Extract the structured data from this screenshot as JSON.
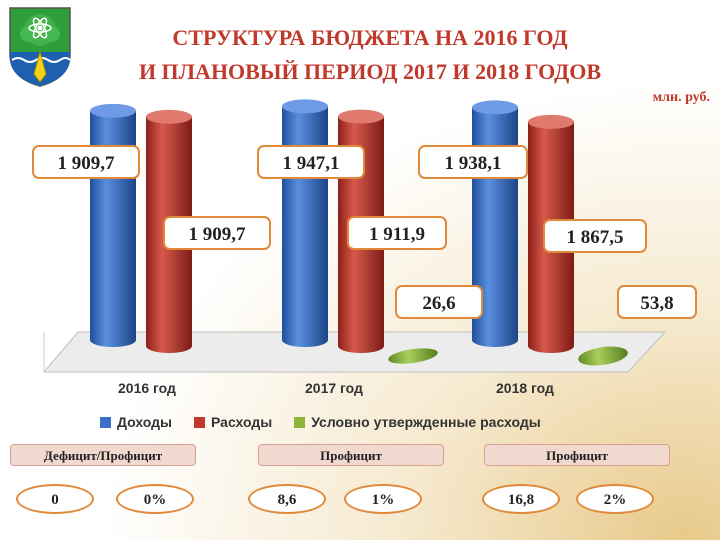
{
  "title": {
    "line1": "СТРУКТУРА БЮДЖЕТА НА 2016 ГОД",
    "line2": "И ПЛАНОВЫЙ ПЕРИОД 2017 И 2018 ГОДОВ"
  },
  "units": "млн. руб.",
  "chart_data": {
    "type": "bar",
    "categories": [
      "2016 год",
      "2017 год",
      "2018 год"
    ],
    "series": [
      {
        "name": "Доходы",
        "color": "#3b6fc4",
        "values": [
          1909.7,
          1947.1,
          1938.1
        ],
        "labels": [
          "1 909,7",
          "1 947,1",
          "1 938,1"
        ]
      },
      {
        "name": "Расходы",
        "color": "#c0392b",
        "values": [
          1909.7,
          1911.9,
          1867.5
        ],
        "labels": [
          "1 909,7",
          "1 911,9",
          "1 867,5"
        ]
      },
      {
        "name": "Условно утвержденные расходы",
        "color": "#8db53c",
        "values": [
          0,
          26.6,
          53.8
        ],
        "labels": [
          "",
          "26,6",
          "53,8"
        ]
      }
    ],
    "style": "3d-cylinder",
    "legend": "bottom"
  },
  "balance": [
    {
      "header": "Дефицит/Профицит",
      "amount": "0",
      "percent": "0%"
    },
    {
      "header": "Профицит",
      "amount": "8,6",
      "percent": "1%"
    },
    {
      "header": "Профицит",
      "amount": "16,8",
      "percent": "2%"
    }
  ],
  "emblem": {
    "icon": "city-coat-of-arms-icon",
    "colors": [
      "#2e9e3a",
      "#1f5fb0",
      "#f5d21a"
    ]
  }
}
